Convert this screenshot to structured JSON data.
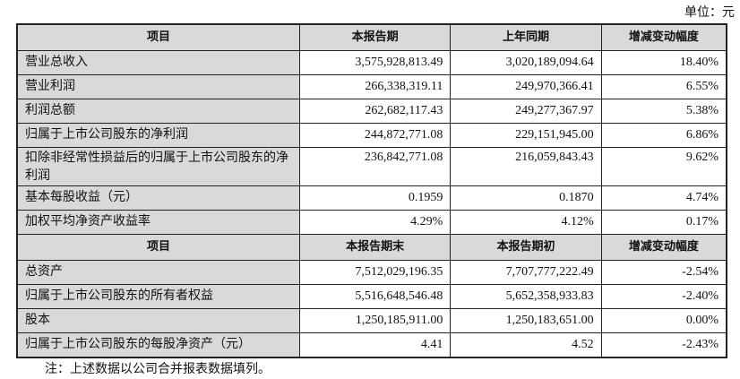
{
  "unit": "单位：元",
  "section1": {
    "headers": [
      "项目",
      "本报告期",
      "上年同期",
      "增减变动幅度"
    ],
    "rows": [
      [
        "营业总收入",
        "3,575,928,813.49",
        "3,020,189,094.64",
        "18.40%"
      ],
      [
        "营业利润",
        "266,338,319.11",
        "249,970,366.41",
        "6.55%"
      ],
      [
        "利润总额",
        "262,682,117.43",
        "249,277,367.97",
        "5.38%"
      ],
      [
        "归属于上市公司股东的净利润",
        "244,872,771.08",
        "229,151,945.00",
        "6.86%"
      ],
      [
        "扣除非经常性损益后的归属于上市公司股东的净利润",
        "236,842,771.08",
        "216,059,843.43",
        "9.62%"
      ],
      [
        "基本每股收益（元）",
        "0.1959",
        "0.1870",
        "4.74%"
      ],
      [
        "加权平均净资产收益率",
        "4.29%",
        "4.12%",
        "0.17%"
      ]
    ]
  },
  "section2": {
    "headers": [
      "项目",
      "本报告期末",
      "本报告期初",
      "增减变动幅度"
    ],
    "rows": [
      [
        "总资产",
        "7,512,029,196.35",
        "7,707,777,222.49",
        "-2.54%"
      ],
      [
        "归属于上市公司股东的所有者权益",
        "5,516,648,546.48",
        "5,652,358,933.83",
        "-2.40%"
      ],
      [
        "股本",
        "1,250,185,911.00",
        "1,250,183,651.00",
        "0.00%"
      ],
      [
        "归属于上市公司股东的每股净资产（元）",
        "4.41",
        "4.52",
        "-2.43%"
      ]
    ]
  },
  "note": "注：上述数据以公司合并报表数据填列。"
}
